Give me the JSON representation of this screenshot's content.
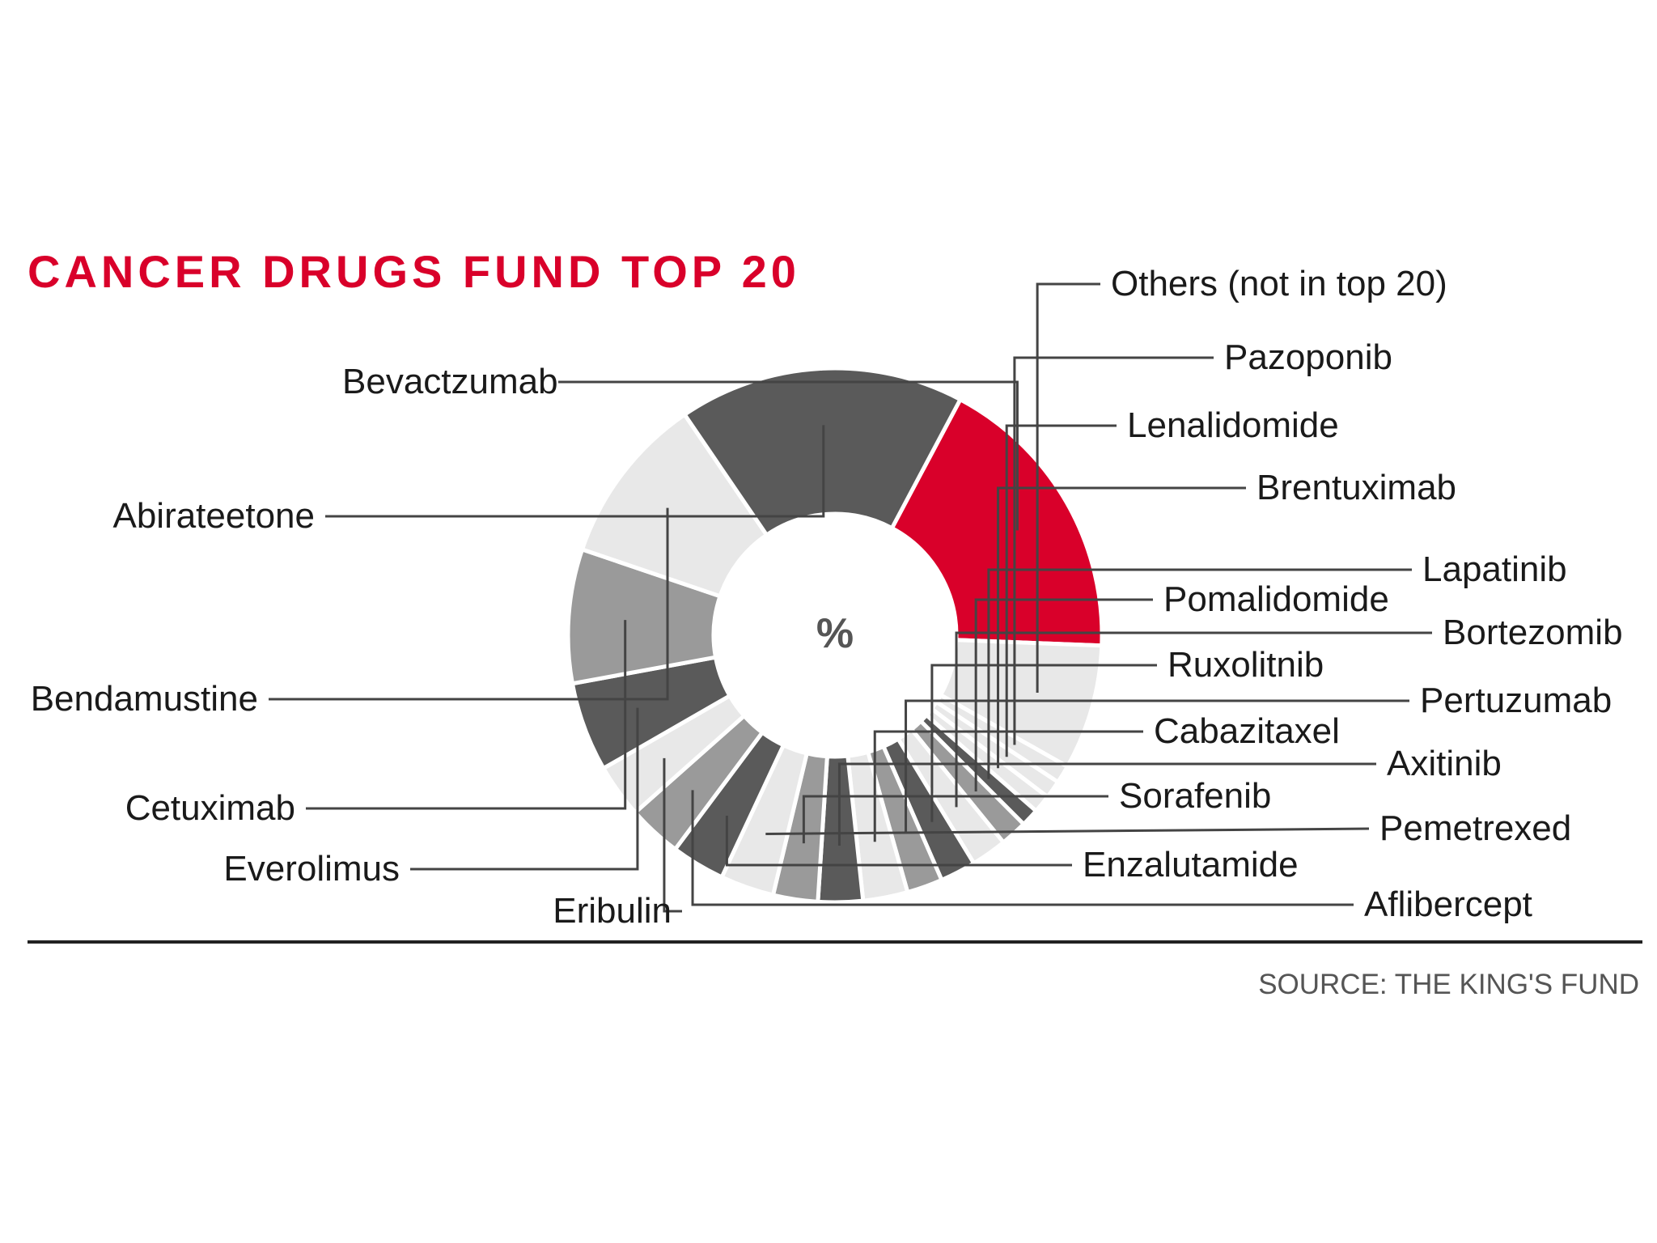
{
  "chart_data": {
    "type": "pie",
    "title": "CANCER DRUGS FUND TOP 20",
    "center_label": "%",
    "source": "SOURCE: THE KING'S FUND",
    "colors": {
      "title": "#d9002a",
      "highlight": "#d9002a",
      "rule": "#222222"
    },
    "slices": [
      {
        "label": "Bevactzumab",
        "value": 16.5,
        "color": "#d9002a"
      },
      {
        "label": "Others (not in top 20)",
        "value": 7.0,
        "color": "#e8e8e8"
      },
      {
        "label": "Pazoponib",
        "value": 1.0,
        "color": "#e8e8e8"
      },
      {
        "label": "Lenalidomide",
        "value": 1.0,
        "color": "#e8e8e8"
      },
      {
        "label": "Brentuximab",
        "value": 1.0,
        "color": "#e8e8e8"
      },
      {
        "label": "Lapatinib",
        "value": 1.0,
        "color": "#5a5a5a"
      },
      {
        "label": "Pomalidomide",
        "value": 1.5,
        "color": "#9a9a9a"
      },
      {
        "label": "Bortezomib",
        "value": 2.0,
        "color": "#e8e8e8"
      },
      {
        "label": "Ruxolitnib",
        "value": 2.0,
        "color": "#5a5a5a"
      },
      {
        "label": "Pertuzumab",
        "value": 2.0,
        "color": "#9a9a9a"
      },
      {
        "label": "Cabazitaxel",
        "value": 2.5,
        "color": "#e8e8e8"
      },
      {
        "label": "Axitinib",
        "value": 2.5,
        "color": "#5a5a5a"
      },
      {
        "label": "Sorafenib",
        "value": 2.5,
        "color": "#9a9a9a"
      },
      {
        "label": "Pemetrexed",
        "value": 3.0,
        "color": "#e8e8e8"
      },
      {
        "label": "Enzalutamide",
        "value": 3.0,
        "color": "#5a5a5a"
      },
      {
        "label": "Aflibercept",
        "value": 3.0,
        "color": "#9a9a9a"
      },
      {
        "label": "Eribulin",
        "value": 3.0,
        "color": "#e8e8e8"
      },
      {
        "label": "Everolimus",
        "value": 5.0,
        "color": "#5a5a5a"
      },
      {
        "label": "Cetuximab",
        "value": 7.5,
        "color": "#9a9a9a"
      },
      {
        "label": "Bendamustine",
        "value": 9.5,
        "color": "#e8e8e8"
      },
      {
        "label": "Abirateetone",
        "value": 16.0,
        "color": "#5a5a5a"
      }
    ]
  }
}
